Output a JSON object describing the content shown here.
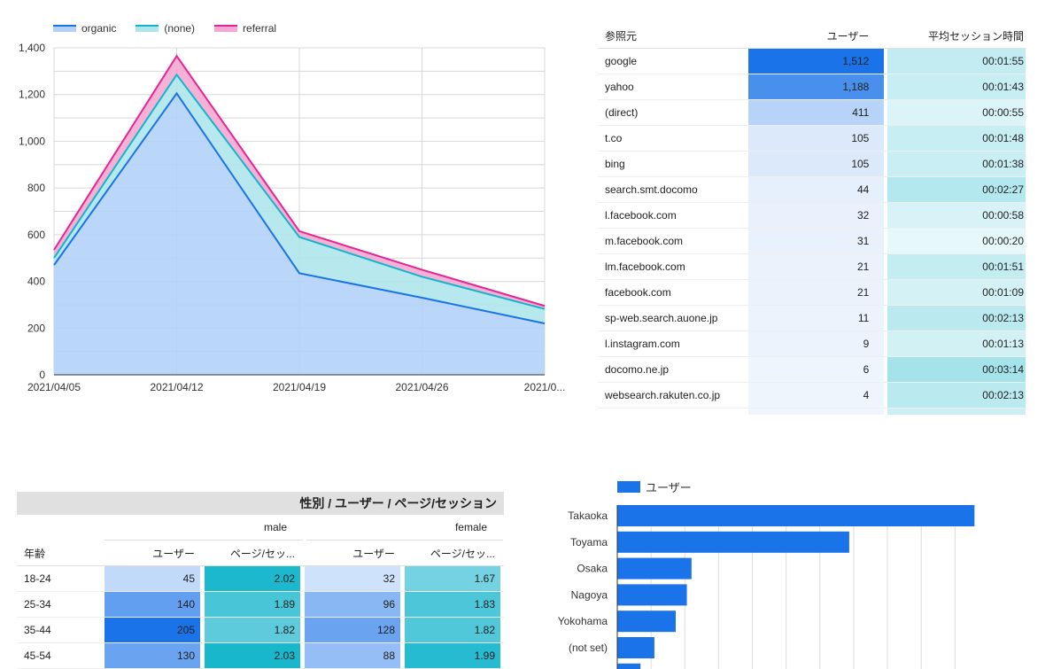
{
  "area_chart": {
    "legend": [
      {
        "name": "organic",
        "color": "#1a73e8",
        "fill": "#b3d1f7"
      },
      {
        "name": "(none)",
        "color": "#12b5cb",
        "fill": "#aee6ec"
      },
      {
        "name": "referral",
        "color": "#e52592",
        "fill": "#f5a8d3"
      }
    ]
  },
  "chart_data": [
    {
      "type": "area",
      "stacked": true,
      "x": [
        "2021/04/05",
        "2021/04/12",
        "2021/04/19",
        "2021/04/26",
        "2021/0..."
      ],
      "ylim": [
        0,
        1400
      ],
      "yticks": [
        "0",
        "200",
        "400",
        "600",
        "800",
        "1,000",
        "1,200",
        "1,400"
      ],
      "grid": true,
      "legend_position": "top-left",
      "series": [
        {
          "name": "organic",
          "values": [
            470,
            1205,
            435,
            330,
            220
          ]
        },
        {
          "name": "(none)",
          "values": [
            30,
            80,
            155,
            90,
            62
          ]
        },
        {
          "name": "referral",
          "values": [
            35,
            80,
            25,
            30,
            13
          ]
        }
      ]
    },
    {
      "type": "bar",
      "orientation": "horizontal",
      "categories": [
        "Takaoka",
        "Toyama",
        "Osaka",
        "Nagoya",
        "Yokohama",
        "(not set)",
        ""
      ],
      "series": [
        {
          "name": "ユーザー",
          "values": [
            385,
            250,
            80,
            75,
            63,
            40,
            25
          ]
        }
      ],
      "xlim": [
        0,
        420
      ],
      "grid": true,
      "legend_position": "top-left"
    }
  ],
  "referrer_table": {
    "headers": {
      "source": "参照元",
      "users": "ユーザー",
      "avg_time": "平均セッション時間"
    },
    "rows": [
      {
        "source": "google",
        "users": "1,512",
        "time": "00:01:55",
        "u_shade": 1.0,
        "t_shade": 0.38
      },
      {
        "source": "yahoo",
        "users": "1,188",
        "time": "00:01:43",
        "u_shade": 0.78,
        "t_shade": 0.34
      },
      {
        "source": "(direct)",
        "users": "411",
        "time": "00:00:55",
        "u_shade": 0.27,
        "t_shade": 0.18
      },
      {
        "source": "t.co",
        "users": "105",
        "time": "00:01:48",
        "u_shade": 0.1,
        "t_shade": 0.35
      },
      {
        "source": "bing",
        "users": "105",
        "time": "00:01:38",
        "u_shade": 0.1,
        "t_shade": 0.33
      },
      {
        "source": "search.smt.docomo",
        "users": "44",
        "time": "00:02:27",
        "u_shade": 0.05,
        "t_shade": 0.5
      },
      {
        "source": "l.facebook.com",
        "users": "32",
        "time": "00:00:58",
        "u_shade": 0.04,
        "t_shade": 0.2
      },
      {
        "source": "m.facebook.com",
        "users": "31",
        "time": "00:00:20",
        "u_shade": 0.04,
        "t_shade": 0.08
      },
      {
        "source": "lm.facebook.com",
        "users": "21",
        "time": "00:01:51",
        "u_shade": 0.03,
        "t_shade": 0.37
      },
      {
        "source": "facebook.com",
        "users": "21",
        "time": "00:01:09",
        "u_shade": 0.03,
        "t_shade": 0.24
      },
      {
        "source": "sp-web.search.auone.jp",
        "users": "11",
        "time": "00:02:13",
        "u_shade": 0.02,
        "t_shade": 0.45
      },
      {
        "source": "l.instagram.com",
        "users": "9",
        "time": "00:01:13",
        "u_shade": 0.02,
        "t_shade": 0.25
      },
      {
        "source": "docomo.ne.jp",
        "users": "6",
        "time": "00:03:14",
        "u_shade": 0.01,
        "t_shade": 0.62
      },
      {
        "source": "websearch.rakuten.co.jp",
        "users": "4",
        "time": "00:02:13",
        "u_shade": 0.01,
        "t_shade": 0.45
      },
      {
        "source": "",
        "users": "",
        "time": "",
        "u_shade": 0.01,
        "t_shade": 0.3
      }
    ]
  },
  "age_table": {
    "title": "性別 / ユーザー / ページ/セッション",
    "genders": [
      "male",
      "female"
    ],
    "headers": {
      "age": "年齢",
      "users": "ユーザー",
      "pages": "ページ/セッ..."
    },
    "rows": [
      {
        "age": "18-24",
        "m_users": "45",
        "m_pages": "2.02",
        "f_users": "32",
        "f_pages": "1.67",
        "mu": 0.12,
        "mp": 0.95,
        "fu": 0.05,
        "fp": 0.5
      },
      {
        "age": "25-34",
        "m_users": "140",
        "m_pages": "1.89",
        "f_users": "96",
        "f_pages": "1.83",
        "mu": 0.62,
        "mp": 0.72,
        "fu": 0.42,
        "fp": 0.7
      },
      {
        "age": "35-44",
        "m_users": "205",
        "m_pages": "1.82",
        "f_users": "128",
        "f_pages": "1.82",
        "mu": 1.0,
        "mp": 0.62,
        "fu": 0.58,
        "fp": 0.68
      },
      {
        "age": "45-54",
        "m_users": "130",
        "m_pages": "2.03",
        "f_users": "88",
        "f_pages": "1.99",
        "mu": 0.58,
        "mp": 0.97,
        "fu": 0.36,
        "fp": 0.9
      }
    ]
  },
  "bar_chart": {
    "legend_label": "ユーザー",
    "color": "#1a73e8"
  }
}
